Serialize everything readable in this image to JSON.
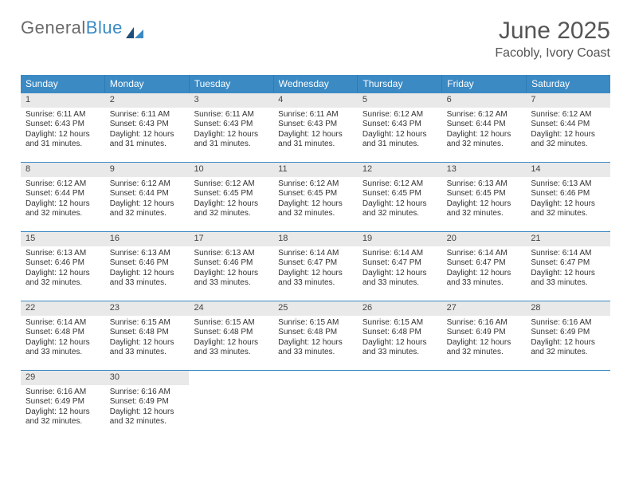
{
  "logo": {
    "word1": "General",
    "word2": "Blue"
  },
  "title": "June 2025",
  "location": "Facobly, Ivory Coast",
  "colors": {
    "header_bg": "#3b8ac4",
    "header_text": "#ffffff",
    "daynum_bg": "#e9e9e9",
    "row_border": "#3b8ac4",
    "body_text": "#333333",
    "title_text": "#555555"
  },
  "typography": {
    "title_fontsize": 30,
    "location_fontsize": 16,
    "dow_fontsize": 12,
    "cell_fontsize": 10
  },
  "layout": {
    "columns": 7,
    "rows": 5,
    "cell_min_height": 86
  },
  "days_of_week": [
    "Sunday",
    "Monday",
    "Tuesday",
    "Wednesday",
    "Thursday",
    "Friday",
    "Saturday"
  ],
  "labels": {
    "sunrise": "Sunrise:",
    "sunset": "Sunset:",
    "daylight": "Daylight:"
  },
  "days": [
    {
      "n": "1",
      "sunrise": "6:11 AM",
      "sunset": "6:43 PM",
      "daylight": "12 hours and 31 minutes."
    },
    {
      "n": "2",
      "sunrise": "6:11 AM",
      "sunset": "6:43 PM",
      "daylight": "12 hours and 31 minutes."
    },
    {
      "n": "3",
      "sunrise": "6:11 AM",
      "sunset": "6:43 PM",
      "daylight": "12 hours and 31 minutes."
    },
    {
      "n": "4",
      "sunrise": "6:11 AM",
      "sunset": "6:43 PM",
      "daylight": "12 hours and 31 minutes."
    },
    {
      "n": "5",
      "sunrise": "6:12 AM",
      "sunset": "6:43 PM",
      "daylight": "12 hours and 31 minutes."
    },
    {
      "n": "6",
      "sunrise": "6:12 AM",
      "sunset": "6:44 PM",
      "daylight": "12 hours and 32 minutes."
    },
    {
      "n": "7",
      "sunrise": "6:12 AM",
      "sunset": "6:44 PM",
      "daylight": "12 hours and 32 minutes."
    },
    {
      "n": "8",
      "sunrise": "6:12 AM",
      "sunset": "6:44 PM",
      "daylight": "12 hours and 32 minutes."
    },
    {
      "n": "9",
      "sunrise": "6:12 AM",
      "sunset": "6:44 PM",
      "daylight": "12 hours and 32 minutes."
    },
    {
      "n": "10",
      "sunrise": "6:12 AM",
      "sunset": "6:45 PM",
      "daylight": "12 hours and 32 minutes."
    },
    {
      "n": "11",
      "sunrise": "6:12 AM",
      "sunset": "6:45 PM",
      "daylight": "12 hours and 32 minutes."
    },
    {
      "n": "12",
      "sunrise": "6:12 AM",
      "sunset": "6:45 PM",
      "daylight": "12 hours and 32 minutes."
    },
    {
      "n": "13",
      "sunrise": "6:13 AM",
      "sunset": "6:45 PM",
      "daylight": "12 hours and 32 minutes."
    },
    {
      "n": "14",
      "sunrise": "6:13 AM",
      "sunset": "6:46 PM",
      "daylight": "12 hours and 32 minutes."
    },
    {
      "n": "15",
      "sunrise": "6:13 AM",
      "sunset": "6:46 PM",
      "daylight": "12 hours and 32 minutes."
    },
    {
      "n": "16",
      "sunrise": "6:13 AM",
      "sunset": "6:46 PM",
      "daylight": "12 hours and 33 minutes."
    },
    {
      "n": "17",
      "sunrise": "6:13 AM",
      "sunset": "6:46 PM",
      "daylight": "12 hours and 33 minutes."
    },
    {
      "n": "18",
      "sunrise": "6:14 AM",
      "sunset": "6:47 PM",
      "daylight": "12 hours and 33 minutes."
    },
    {
      "n": "19",
      "sunrise": "6:14 AM",
      "sunset": "6:47 PM",
      "daylight": "12 hours and 33 minutes."
    },
    {
      "n": "20",
      "sunrise": "6:14 AM",
      "sunset": "6:47 PM",
      "daylight": "12 hours and 33 minutes."
    },
    {
      "n": "21",
      "sunrise": "6:14 AM",
      "sunset": "6:47 PM",
      "daylight": "12 hours and 33 minutes."
    },
    {
      "n": "22",
      "sunrise": "6:14 AM",
      "sunset": "6:48 PM",
      "daylight": "12 hours and 33 minutes."
    },
    {
      "n": "23",
      "sunrise": "6:15 AM",
      "sunset": "6:48 PM",
      "daylight": "12 hours and 33 minutes."
    },
    {
      "n": "24",
      "sunrise": "6:15 AM",
      "sunset": "6:48 PM",
      "daylight": "12 hours and 33 minutes."
    },
    {
      "n": "25",
      "sunrise": "6:15 AM",
      "sunset": "6:48 PM",
      "daylight": "12 hours and 33 minutes."
    },
    {
      "n": "26",
      "sunrise": "6:15 AM",
      "sunset": "6:48 PM",
      "daylight": "12 hours and 33 minutes."
    },
    {
      "n": "27",
      "sunrise": "6:16 AM",
      "sunset": "6:49 PM",
      "daylight": "12 hours and 32 minutes."
    },
    {
      "n": "28",
      "sunrise": "6:16 AM",
      "sunset": "6:49 PM",
      "daylight": "12 hours and 32 minutes."
    },
    {
      "n": "29",
      "sunrise": "6:16 AM",
      "sunset": "6:49 PM",
      "daylight": "12 hours and 32 minutes."
    },
    {
      "n": "30",
      "sunrise": "6:16 AM",
      "sunset": "6:49 PM",
      "daylight": "12 hours and 32 minutes."
    }
  ]
}
